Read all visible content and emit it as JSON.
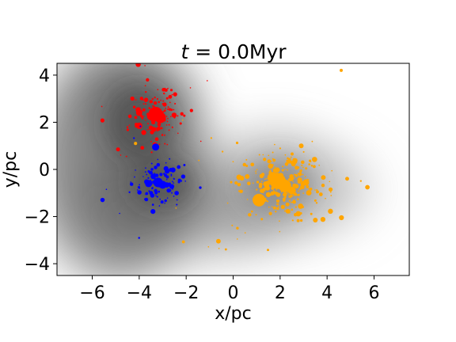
{
  "chart_data": {
    "type": "scatter",
    "title_prefix": "t",
    "title_eq": " = 0.0Myr",
    "xlabel": "x/pc",
    "ylabel": "y/pc",
    "xlim": [
      -7.5,
      7.5
    ],
    "ylim": [
      -4.5,
      4.5
    ],
    "xticks": [
      -6,
      -4,
      -2,
      0,
      2,
      4,
      6
    ],
    "xtick_labels": [
      "−6",
      "−4",
      "−2",
      "0",
      "2",
      "4",
      "6"
    ],
    "yticks": [
      -4,
      -2,
      0,
      2,
      4
    ],
    "ytick_labels": [
      "−4",
      "−2",
      "0",
      "2",
      "4"
    ],
    "background": "grayscale gas density map",
    "clusters": [
      {
        "color": "#ff0000",
        "center": [
          -3.3,
          2.3
        ],
        "spread": [
          0.55,
          0.6
        ],
        "n_points": 150,
        "big_stars": [
          [
            -3.3,
            2.35,
            9
          ],
          [
            -3.1,
            2.2,
            7
          ],
          [
            -3.5,
            2.25,
            5
          ],
          [
            -4.0,
            2.4,
            4
          ],
          [
            -4.0,
            1.85,
            4
          ],
          [
            -4.9,
            0.85,
            2.5
          ]
        ]
      },
      {
        "color": "#0000ff",
        "center": [
          -3.2,
          -0.6
        ],
        "spread": [
          0.55,
          0.45
        ],
        "n_points": 130,
        "big_stars": [
          [
            -3.3,
            0.95,
            4.5
          ],
          [
            -3.2,
            -0.55,
            6
          ],
          [
            -3.0,
            -0.65,
            5
          ],
          [
            -3.6,
            -0.6,
            4.5
          ],
          [
            -3.4,
            -0.3,
            3.5
          ]
        ]
      },
      {
        "color": "#ffa500",
        "center": [
          2.0,
          -0.6
        ],
        "spread": [
          0.9,
          0.7
        ],
        "n_points": 300,
        "big_stars": [
          [
            1.9,
            -0.5,
            10
          ],
          [
            2.2,
            -0.7,
            8
          ],
          [
            1.7,
            -0.35,
            7
          ],
          [
            1.1,
            -1.3,
            8
          ],
          [
            2.5,
            -0.9,
            5
          ],
          [
            3.1,
            -0.55,
            4
          ],
          [
            3.5,
            -2.15,
            3
          ],
          [
            4.6,
            4.2,
            2
          ],
          [
            2.9,
            1.0,
            3
          ]
        ]
      }
    ]
  }
}
